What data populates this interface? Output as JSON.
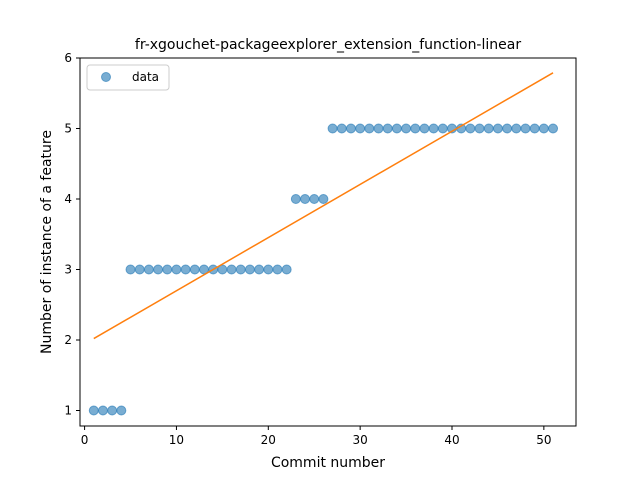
{
  "chart_data": {
    "type": "scatter",
    "title": "fr-xgouchet-packageexplorer_extension_function-linear",
    "xlabel": "Commit number",
    "ylabel": "Number of instance of a feature",
    "xlim": [
      -0.5,
      53.5
    ],
    "ylim": [
      0.78,
      6.0
    ],
    "xticks": [
      0,
      10,
      20,
      30,
      40,
      50
    ],
    "yticks": [
      1,
      2,
      3,
      4,
      5,
      6
    ],
    "grid": false,
    "legend_position": "top-left",
    "series": [
      {
        "name": "data",
        "kind": "scatter",
        "color": "#1f77b4",
        "x": [
          1,
          2,
          3,
          4,
          5,
          6,
          7,
          8,
          9,
          10,
          11,
          12,
          13,
          14,
          15,
          16,
          17,
          18,
          19,
          20,
          21,
          22,
          23,
          24,
          25,
          26,
          27,
          28,
          29,
          30,
          31,
          32,
          33,
          34,
          35,
          36,
          37,
          38,
          39,
          40,
          41,
          42,
          43,
          44,
          45,
          46,
          47,
          48,
          49,
          50,
          51
        ],
        "y": [
          1,
          1,
          1,
          1,
          3,
          3,
          3,
          3,
          3,
          3,
          3,
          3,
          3,
          3,
          3,
          3,
          3,
          3,
          3,
          3,
          3,
          3,
          4,
          4,
          4,
          4,
          5,
          5,
          5,
          5,
          5,
          5,
          5,
          5,
          5,
          5,
          5,
          5,
          5,
          5,
          5,
          5,
          5,
          5,
          5,
          5,
          5,
          5,
          5,
          5,
          5
        ]
      },
      {
        "kind": "line",
        "color": "#ff7f0e",
        "x": [
          1,
          51
        ],
        "y": [
          2.02,
          5.79
        ]
      }
    ]
  }
}
